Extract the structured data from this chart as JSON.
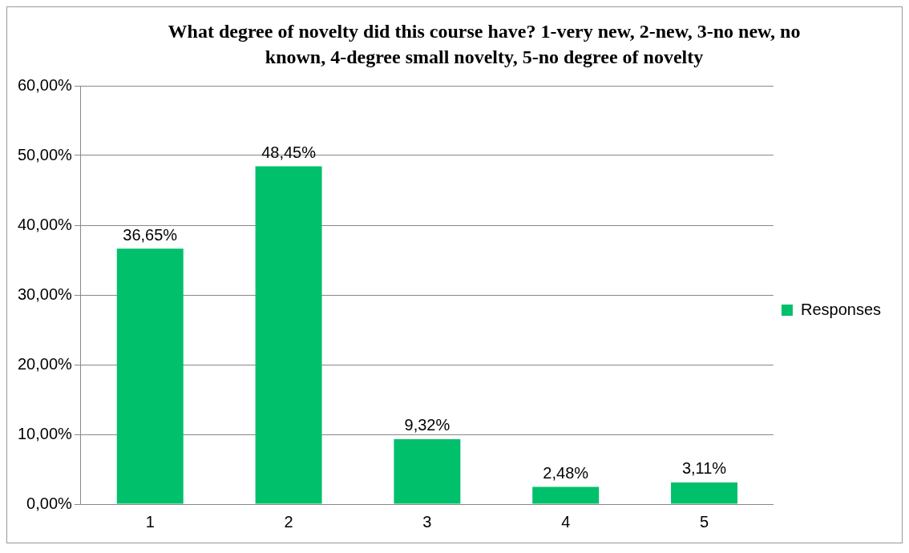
{
  "chart_data": {
    "type": "bar",
    "title": "What degree of novelty did this course have? 1-very new, 2-new, 3-no new, no known, 4-degree small novelty, 5-no degree of novelty",
    "categories": [
      "1",
      "2",
      "3",
      "4",
      "5"
    ],
    "series": [
      {
        "name": "Responses",
        "color": "#00c06b",
        "values": [
          36.65,
          48.45,
          9.32,
          2.48,
          3.11
        ],
        "value_labels": [
          "36,65%",
          "48,45%",
          "9,32%",
          "2,48%",
          "3,11%"
        ]
      }
    ],
    "ylim": [
      0,
      60
    ],
    "yticks": [
      {
        "value": 0,
        "label": "0,00%"
      },
      {
        "value": 10,
        "label": "10,00%"
      },
      {
        "value": 20,
        "label": "20,00%"
      },
      {
        "value": 30,
        "label": "30,00%"
      },
      {
        "value": 40,
        "label": "40,00%"
      },
      {
        "value": 50,
        "label": "50,00%"
      },
      {
        "value": 60,
        "label": "60,00%"
      }
    ],
    "grid": "y",
    "legend": "right"
  }
}
